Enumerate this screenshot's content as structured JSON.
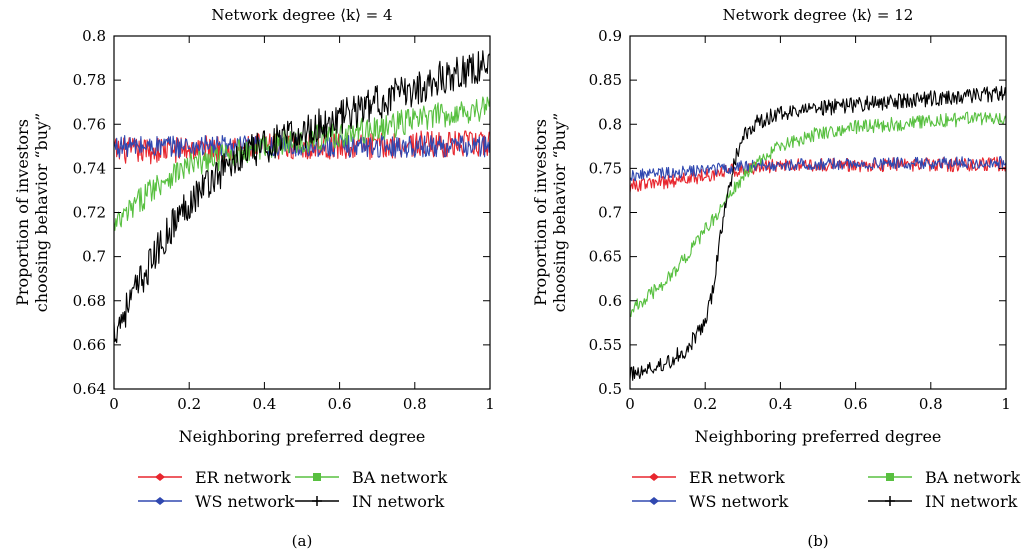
{
  "chart_data": [
    {
      "type": "line",
      "title": "Network degree ⟨k⟩ = 4",
      "xlabel": "Neighboring preferred degree",
      "ylabel": [
        "Proportion of investors",
        "choosing behavior “buy”"
      ],
      "xlim": [
        0,
        1
      ],
      "ylim": [
        0.64,
        0.8
      ],
      "xticks": [
        0,
        0.2,
        0.4,
        0.6,
        0.8,
        1
      ],
      "xtick_labels": [
        "0",
        "0.2",
        "0.4",
        "0.6",
        "0.8",
        "1"
      ],
      "yticks": [
        0.64,
        0.66,
        0.68,
        0.7,
        0.72,
        0.74,
        0.76,
        0.78,
        0.8
      ],
      "ytick_labels": [
        "0.64",
        "0.66",
        "0.68",
        "0.7",
        "0.72",
        "0.74",
        "0.76",
        "0.78",
        "0.8"
      ],
      "grid": false,
      "legend_position": "bottom",
      "caption": "(a)",
      "series": [
        {
          "name": "ER network",
          "color": "#e8262e",
          "marker": "diamond",
          "x": [
            0,
            0.1,
            0.2,
            0.3,
            0.4,
            0.5,
            0.6,
            0.7,
            0.8,
            0.9,
            1.0
          ],
          "y": [
            0.748,
            0.748,
            0.749,
            0.749,
            0.75,
            0.75,
            0.75,
            0.75,
            0.751,
            0.751,
            0.751
          ],
          "noise": 0.006
        },
        {
          "name": "WS network",
          "color": "#3048b0",
          "marker": "diamond",
          "x": [
            0,
            0.1,
            0.2,
            0.3,
            0.4,
            0.5,
            0.6,
            0.7,
            0.8,
            0.9,
            1.0
          ],
          "y": [
            0.75,
            0.75,
            0.75,
            0.75,
            0.75,
            0.75,
            0.75,
            0.75,
            0.75,
            0.75,
            0.75
          ],
          "noise": 0.005
        },
        {
          "name": "BA network",
          "color": "#58c040",
          "marker": "square",
          "x": [
            0,
            0.05,
            0.1,
            0.15,
            0.2,
            0.3,
            0.4,
            0.5,
            0.6,
            0.7,
            0.8,
            0.9,
            1.0
          ],
          "y": [
            0.713,
            0.722,
            0.731,
            0.737,
            0.741,
            0.746,
            0.75,
            0.753,
            0.755,
            0.758,
            0.762,
            0.765,
            0.768
          ],
          "noise": 0.006
        },
        {
          "name": "IN network",
          "color": "#000000",
          "marker": "plus",
          "x": [
            0,
            0.05,
            0.1,
            0.15,
            0.2,
            0.25,
            0.3,
            0.35,
            0.4,
            0.5,
            0.6,
            0.7,
            0.8,
            0.9,
            1.0
          ],
          "y": [
            0.666,
            0.682,
            0.698,
            0.713,
            0.725,
            0.734,
            0.741,
            0.746,
            0.75,
            0.756,
            0.763,
            0.77,
            0.776,
            0.783,
            0.787
          ],
          "noise": 0.008
        }
      ]
    },
    {
      "type": "line",
      "title": "Network degree ⟨k⟩ = 12",
      "xlabel": "Neighboring preferred degree",
      "ylabel": [
        "Proportion of investors",
        "choosing behavior “buy”"
      ],
      "xlim": [
        0,
        1
      ],
      "ylim": [
        0.5,
        0.9
      ],
      "xticks": [
        0,
        0.2,
        0.4,
        0.6,
        0.8,
        1
      ],
      "xtick_labels": [
        "0",
        "0.2",
        "0.4",
        "0.6",
        "0.8",
        "1"
      ],
      "yticks": [
        0.5,
        0.55,
        0.6,
        0.65,
        0.7,
        0.75,
        0.8,
        0.85,
        0.9
      ],
      "ytick_labels": [
        "0.5",
        "0.55",
        "0.6",
        "0.65",
        "0.7",
        "0.75",
        "0.8",
        "0.85",
        "0.9"
      ],
      "grid": false,
      "legend_position": "bottom",
      "caption": "(b)",
      "series": [
        {
          "name": "ER network",
          "color": "#e8262e",
          "marker": "diamond",
          "x": [
            0,
            0.1,
            0.2,
            0.3,
            0.4,
            0.6,
            0.8,
            1.0
          ],
          "y": [
            0.73,
            0.735,
            0.742,
            0.75,
            0.753,
            0.754,
            0.754,
            0.755
          ],
          "noise": 0.008
        },
        {
          "name": "WS network",
          "color": "#3048b0",
          "marker": "diamond",
          "x": [
            0,
            0.1,
            0.2,
            0.3,
            0.4,
            0.6,
            0.8,
            1.0
          ],
          "y": [
            0.742,
            0.745,
            0.748,
            0.752,
            0.754,
            0.755,
            0.756,
            0.757
          ],
          "noise": 0.007
        },
        {
          "name": "BA network",
          "color": "#58c040",
          "marker": "square",
          "x": [
            0,
            0.05,
            0.1,
            0.15,
            0.2,
            0.25,
            0.3,
            0.35,
            0.4,
            0.5,
            0.6,
            0.7,
            0.8,
            0.9,
            1.0
          ],
          "y": [
            0.588,
            0.605,
            0.625,
            0.65,
            0.68,
            0.71,
            0.74,
            0.76,
            0.775,
            0.79,
            0.797,
            0.8,
            0.803,
            0.806,
            0.808
          ],
          "noise": 0.008
        },
        {
          "name": "IN network",
          "color": "#000000",
          "marker": "plus",
          "x": [
            0,
            0.05,
            0.1,
            0.15,
            0.2,
            0.22,
            0.25,
            0.28,
            0.3,
            0.33,
            0.37,
            0.4,
            0.5,
            0.6,
            0.7,
            0.8,
            0.9,
            1.0
          ],
          "y": [
            0.517,
            0.522,
            0.53,
            0.545,
            0.575,
            0.61,
            0.7,
            0.76,
            0.785,
            0.8,
            0.808,
            0.812,
            0.818,
            0.822,
            0.826,
            0.829,
            0.832,
            0.835
          ],
          "noise": 0.009
        }
      ]
    }
  ]
}
